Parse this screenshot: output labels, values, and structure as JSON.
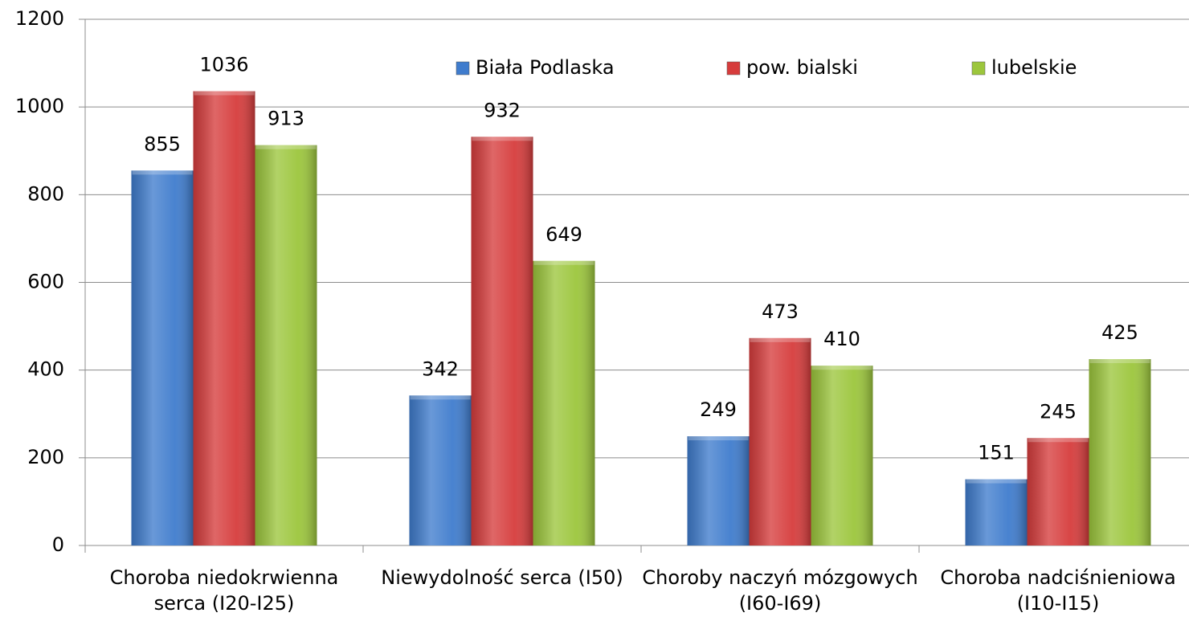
{
  "chart_data": {
    "type": "bar",
    "categories": [
      "Choroba niedokrwienna serca (I20-I25)",
      "Niewydolność serca (I50)",
      "Choroby naczyń mózgowych (I60-I69)",
      "Choroba nadciśnieniowa (I10-I15)"
    ],
    "series": [
      {
        "name": "Biała Podlaska",
        "color": "#3f7ccd",
        "values": [
          855,
          342,
          249,
          151
        ]
      },
      {
        "name": "pow. bialski",
        "color": "#d63c3c",
        "values": [
          1036,
          932,
          473,
          245
        ]
      },
      {
        "name": "lubelskie",
        "color": "#9cc63c",
        "values": [
          913,
          649,
          410,
          425
        ]
      }
    ],
    "ylim": [
      0,
      1200
    ],
    "yticks": [
      0,
      200,
      400,
      600,
      800,
      1000,
      1200
    ],
    "grid": true,
    "legend": "top"
  }
}
